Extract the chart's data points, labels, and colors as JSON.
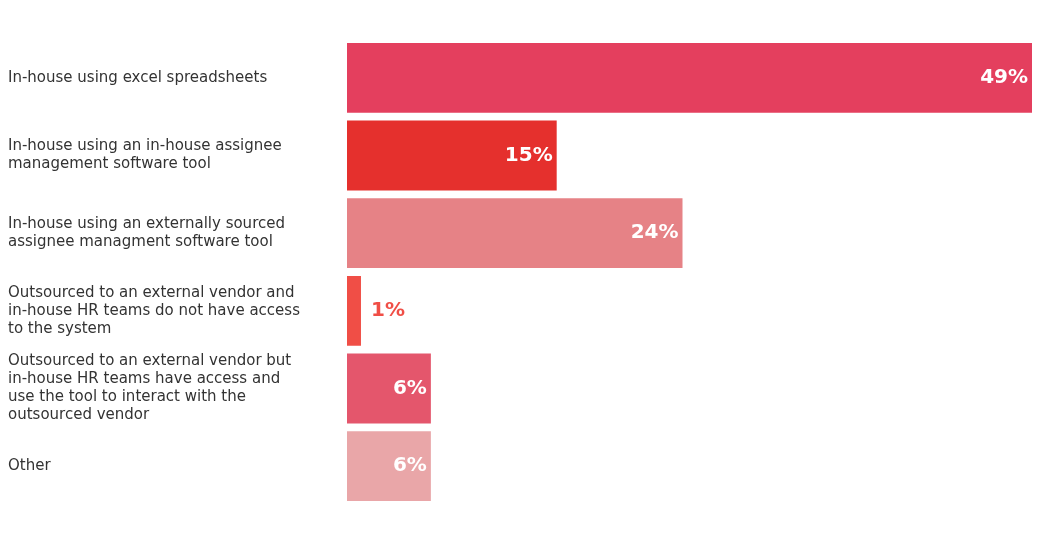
{
  "chart_data": {
    "type": "bar",
    "orientation": "horizontal",
    "categories": [
      "In-house using excel spreadsheets",
      "In-house using an in-house assignee management software tool",
      "In-house using an externally sourced assignee managment software tool",
      "Outsourced to an external vendor and in-house HR teams do not have access to the system",
      "Outsourced to an external vendor but in-house HR teams have access and use the tool to interact with the outsourced vendor",
      "Other"
    ],
    "values": [
      49,
      15,
      24,
      1,
      6,
      6
    ],
    "colors": [
      "#e43f5e",
      "#e5302d",
      "#e68286",
      "#f04e46",
      "#e4566c",
      "#e9a6a8"
    ],
    "value_labels": [
      "49%",
      "15%",
      "24%",
      "1%",
      "6%",
      "6%"
    ],
    "grid": false,
    "legend": false
  }
}
